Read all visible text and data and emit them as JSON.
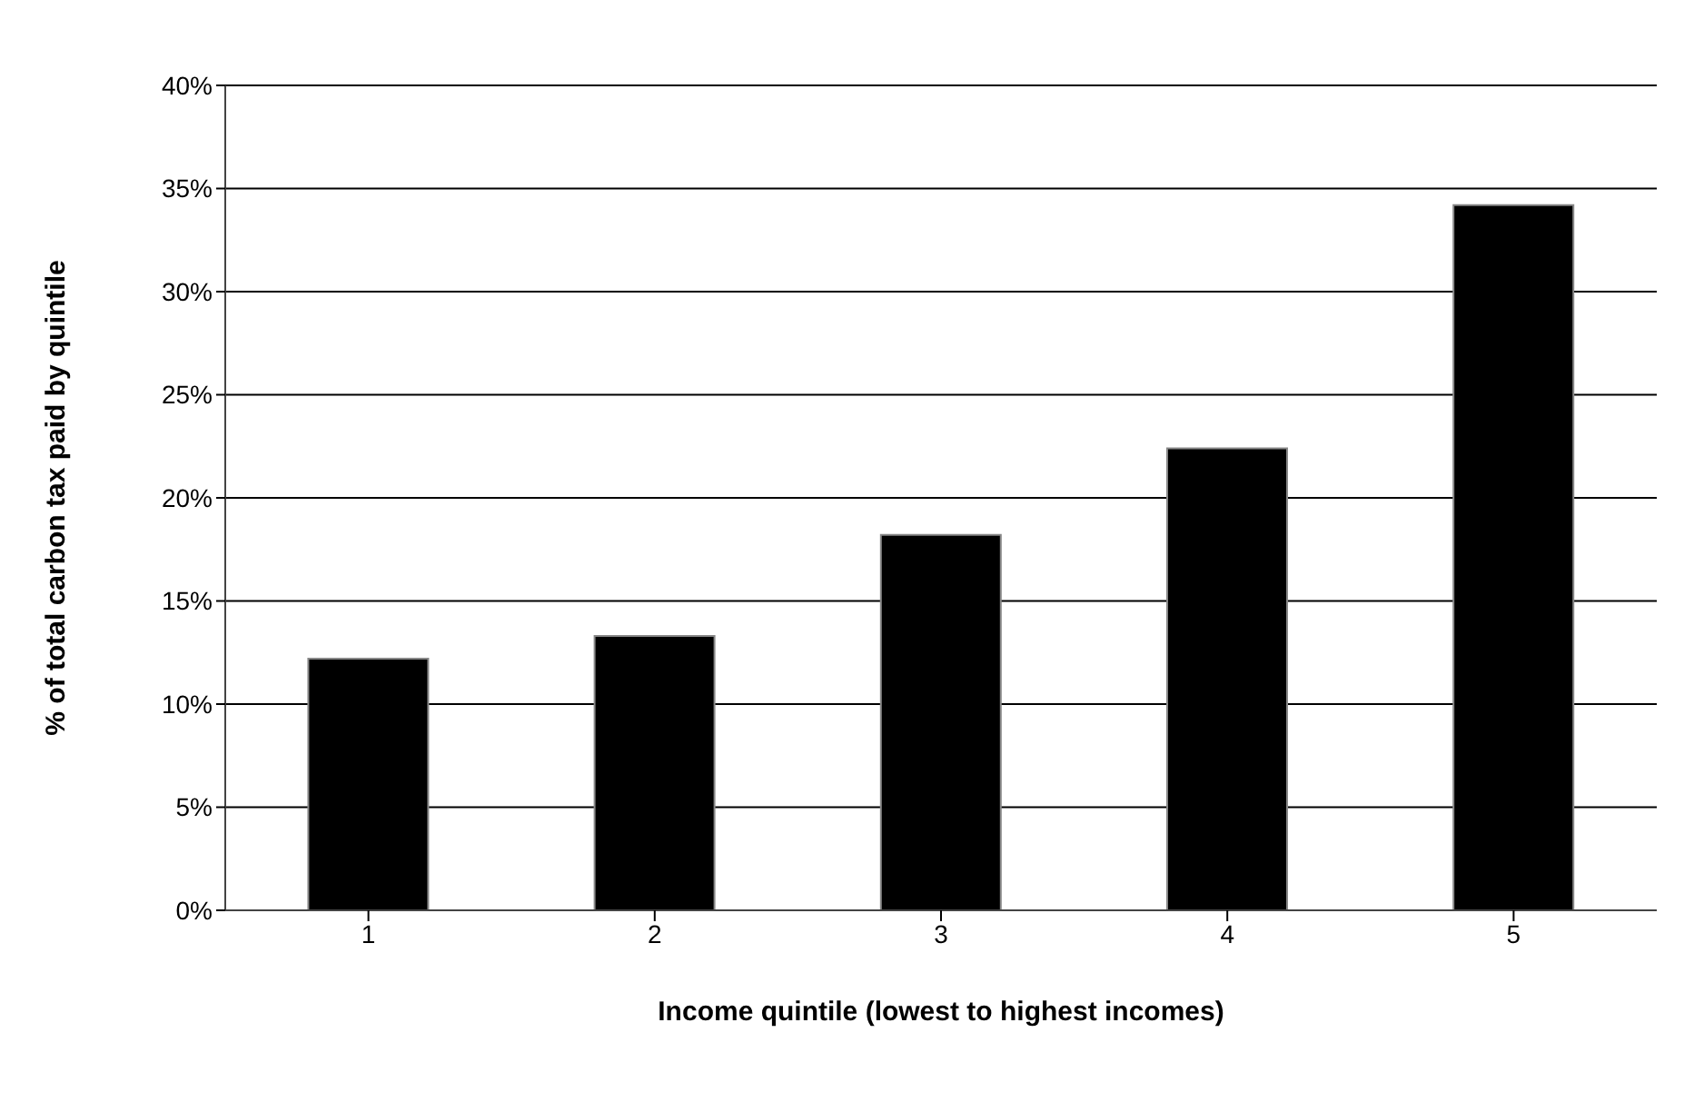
{
  "chart_data": {
    "type": "bar",
    "categories": [
      "1",
      "2",
      "3",
      "4",
      "5"
    ],
    "values": [
      12.2,
      13.3,
      18.2,
      22.4,
      34.2
    ],
    "color": "#000000",
    "xlabel": "Income quintile (lowest to highest incomes)",
    "ylabel": "% of total carbon tax paid by quintile",
    "ylim": [
      0,
      40
    ],
    "yticks": [
      {
        "value": 0,
        "label": "0%"
      },
      {
        "value": 5,
        "label": "5%"
      },
      {
        "value": 10,
        "label": "10%"
      },
      {
        "value": 15,
        "label": "15%"
      },
      {
        "value": 20,
        "label": "20%"
      },
      {
        "value": 25,
        "label": "25%"
      },
      {
        "value": 30,
        "label": "30%"
      },
      {
        "value": 35,
        "label": "35%"
      },
      {
        "value": 40,
        "label": "40%"
      }
    ],
    "grid": "y",
    "legend": false
  }
}
